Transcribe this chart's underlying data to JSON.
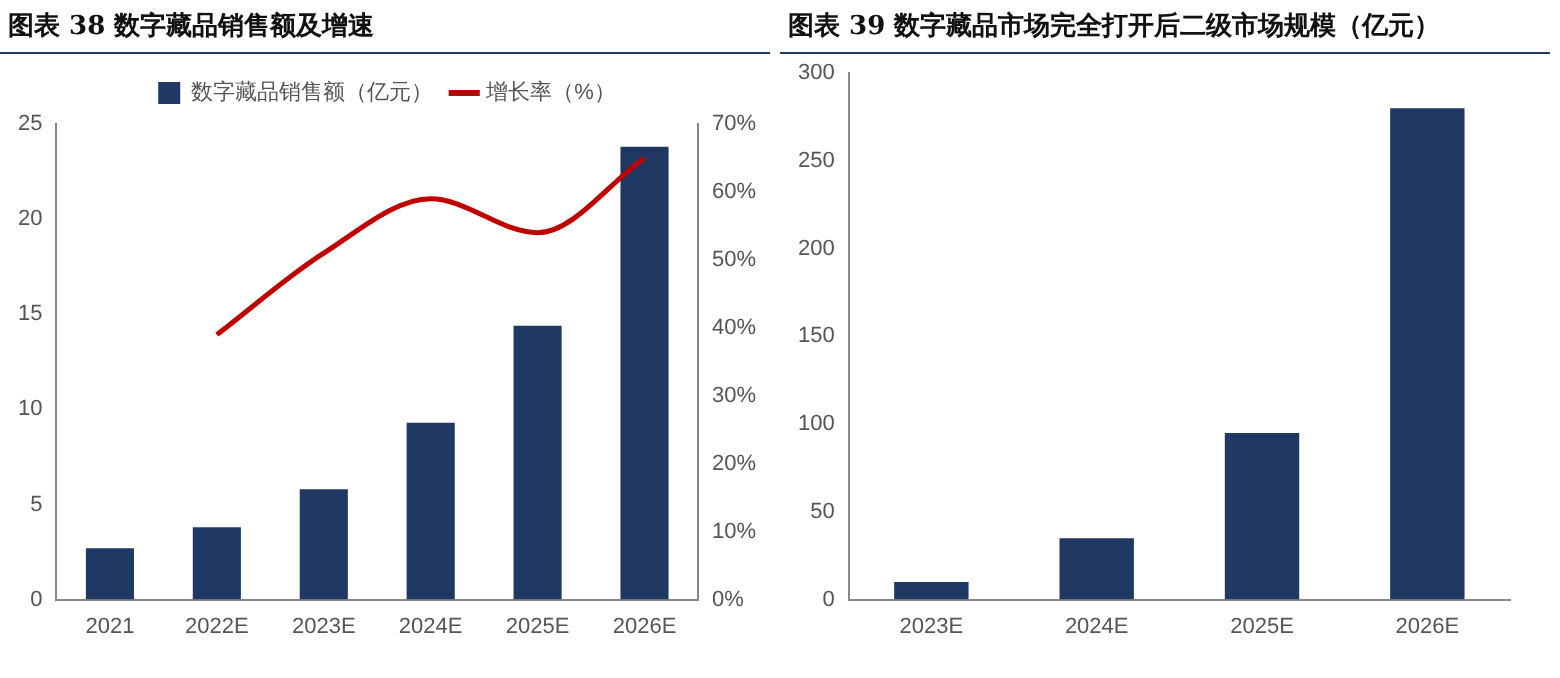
{
  "chart_data": [
    {
      "type": "bar",
      "title": "图表 38 数字藏品销售额及增速",
      "categories": [
        "2021",
        "2022E",
        "2023E",
        "2024E",
        "2025E",
        "2026E"
      ],
      "series": [
        {
          "name": "数字藏品销售额（亿元）",
          "color": "#1f3864",
          "values": [
            2.7,
            3.8,
            5.8,
            9.3,
            14.4,
            23.8
          ]
        },
        {
          "name": "增长率（%）",
          "type": "line",
          "axis": "y2",
          "color": "#c00000",
          "values": [
            null,
            39,
            51,
            59,
            54,
            65
          ]
        }
      ],
      "ylim": [
        0,
        25
      ],
      "yticks": [
        0,
        5,
        10,
        15,
        20,
        25
      ],
      "y2lim": [
        0,
        70
      ],
      "y2ticks": [
        {
          "value": 0,
          "label": "0%"
        },
        {
          "value": 10,
          "label": "10%"
        },
        {
          "value": 20,
          "label": "20%"
        },
        {
          "value": 30,
          "label": "30%"
        },
        {
          "value": 40,
          "label": "40%"
        },
        {
          "value": 50,
          "label": "50%"
        },
        {
          "value": 60,
          "label": "60%"
        },
        {
          "value": 70,
          "label": "70%"
        }
      ],
      "legend": "top",
      "grid": false,
      "marker": "none"
    },
    {
      "type": "bar",
      "title": "图表 39 数字藏品市场完全打开后二级市场规模（亿元）",
      "categories": [
        "2023E",
        "2024E",
        "2025E",
        "2026E"
      ],
      "values": [
        10,
        35,
        95,
        280
      ],
      "color": "#1f3864",
      "ylim": [
        0,
        300
      ],
      "yticks": [
        0,
        50,
        100,
        150,
        200,
        250,
        300
      ],
      "grid": false
    }
  ]
}
